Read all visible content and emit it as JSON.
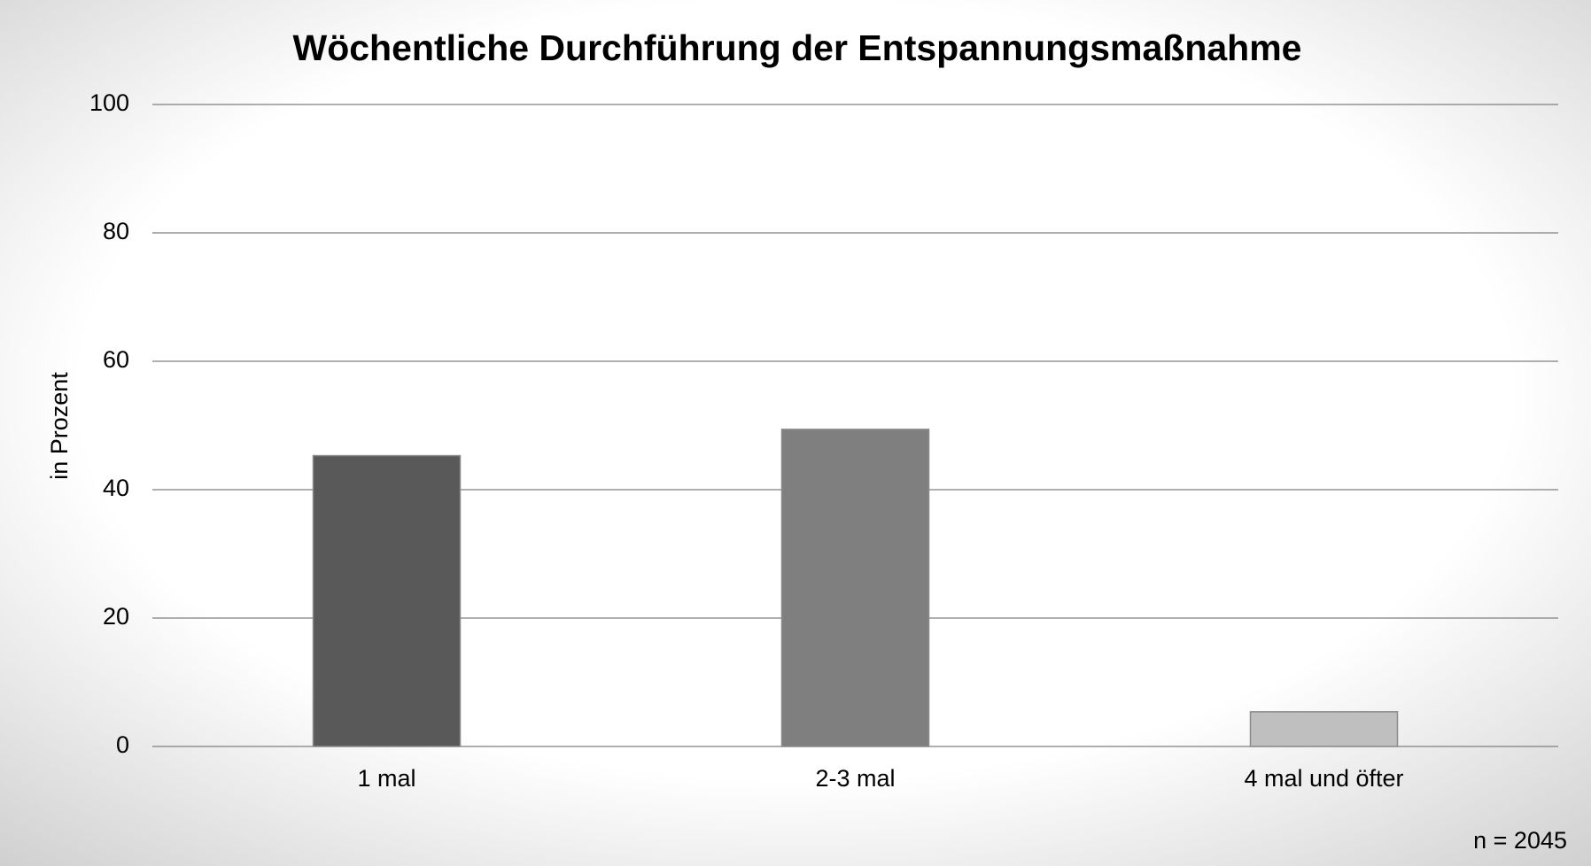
{
  "chart_data": {
    "type": "bar",
    "title": "Wöchentliche Durchführung der Entspannungsmaßnahme",
    "y_label": "in Prozent",
    "note": "n = 2045",
    "categories": [
      "1 mal",
      "2-3 mal",
      "4 mal und öfter"
    ],
    "values": [
      45.3,
      49.4,
      5.4
    ],
    "colors": [
      "#595959",
      "#7f7f7f",
      "#bfbfbf"
    ],
    "ylim": [
      0,
      100
    ],
    "yticks": [
      0,
      20,
      40,
      60,
      80,
      100
    ],
    "grid": true
  }
}
